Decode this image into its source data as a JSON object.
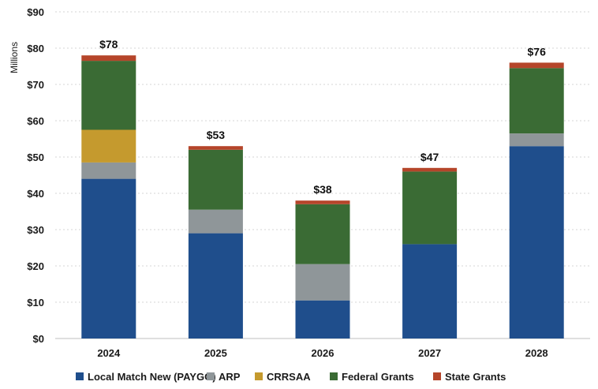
{
  "chart_data": {
    "type": "bar",
    "stacked": true,
    "title": "",
    "xlabel": "",
    "ylabel": "Millions",
    "ylim": [
      0,
      90
    ],
    "ytick_step": 10,
    "ytick_labels": [
      "$0",
      "$10",
      "$20",
      "$30",
      "$40",
      "$50",
      "$60",
      "$70",
      "$80",
      "$90"
    ],
    "grid": true,
    "legend_position": "bottom",
    "categories": [
      "2024",
      "2025",
      "2026",
      "2027",
      "2028"
    ],
    "totals": [
      "$78",
      "$53",
      "$38",
      "$47",
      "$76"
    ],
    "series": [
      {
        "name": "Local Match New (PAYGO)",
        "color": "#1f4e8c",
        "values": [
          44,
          29,
          10.5,
          26,
          53
        ]
      },
      {
        "name": "ARP",
        "color": "#8f9699",
        "values": [
          4.5,
          6.5,
          10,
          0,
          3.5
        ]
      },
      {
        "name": "CRRSAA",
        "color": "#c59a2e",
        "values": [
          9,
          0,
          0,
          0,
          0
        ]
      },
      {
        "name": "Federal Grants",
        "color": "#3a6b34",
        "values": [
          19,
          16.5,
          16.5,
          20,
          18
        ]
      },
      {
        "name": "State Grants",
        "color": "#b5452a",
        "values": [
          1.5,
          1,
          1,
          1,
          1.5
        ]
      }
    ]
  }
}
